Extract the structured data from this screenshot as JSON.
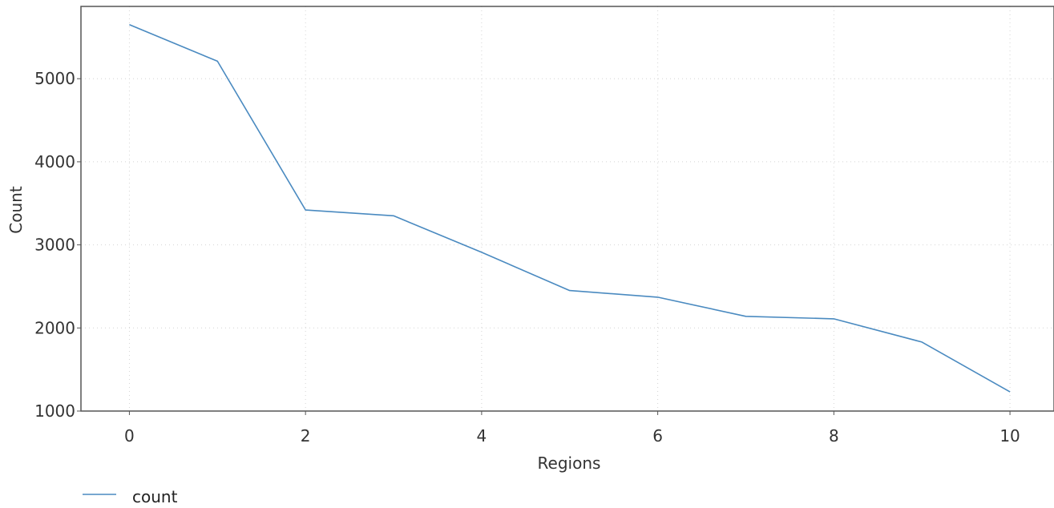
{
  "chart_data": {
    "type": "line",
    "xlabel": "Regions",
    "ylabel": "Count",
    "xlim": [
      -0.55,
      10.5
    ],
    "ylim": [
      1000,
      5870
    ],
    "xticks": [
      0,
      2,
      4,
      6,
      8,
      10
    ],
    "yticks": [
      1000,
      2000,
      3000,
      4000,
      5000
    ],
    "grid": true,
    "legend_position": "bottom-left",
    "series": [
      {
        "name": "count",
        "color": "#4a8ac0",
        "x": [
          0,
          1,
          2,
          3,
          4,
          5,
          6,
          7,
          8,
          9,
          10
        ],
        "values": [
          5650,
          5210,
          3420,
          3350,
          2910,
          2450,
          2370,
          2140,
          2110,
          1830,
          1230
        ]
      }
    ]
  }
}
